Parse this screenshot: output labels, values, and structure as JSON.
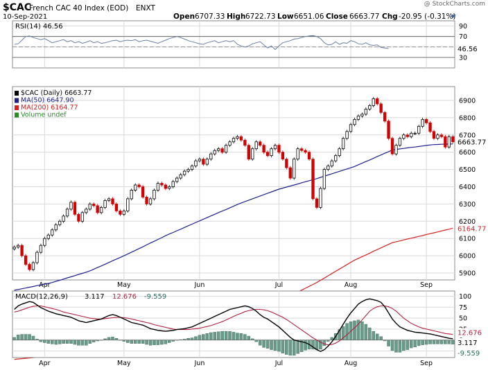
{
  "header": {
    "symbol": "$CAC",
    "name": "French CAC 40 Index (EOD)",
    "exchange": "ENXT",
    "date": "10-Sep-2021",
    "watermark": "@ StockCharts.com",
    "quote": {
      "open_label": "Open",
      "open": "6707.33",
      "high_label": "High",
      "high": "6722.73",
      "low_label": "Low",
      "low": "6651.06",
      "close_label": "Close",
      "close": "6663.77",
      "chg_label": "Chg",
      "chg": "-20.95 (-0.31%)"
    }
  },
  "colors": {
    "up": "#000000",
    "down": "#d40000",
    "ma50": "#1f1f8f",
    "ma200": "#d42020",
    "rsi": "#6b7ea4",
    "rsi_fill": "#7f96a6",
    "macd": "#000000",
    "signal": "#b02040",
    "hist": "#6a9a8a",
    "grid": "#d8d8d8",
    "chg": "#d40000"
  },
  "chart_data": [
    {
      "type": "line",
      "name": "rsi",
      "legend": "RSI(14) 46.56",
      "last_label": "46.56",
      "ylim": [
        10,
        100
      ],
      "yticks": [
        30,
        50,
        70,
        90
      ],
      "overbought": 70,
      "oversold": 30,
      "values": [
        55,
        56,
        63,
        70,
        71,
        68,
        66,
        64,
        66,
        62,
        58,
        60,
        62,
        64,
        60,
        62,
        58,
        60,
        57,
        59,
        62,
        58,
        60,
        57,
        58,
        60,
        62,
        63,
        60,
        62,
        63,
        62,
        64,
        60,
        62,
        63,
        61,
        59,
        57,
        60,
        63,
        66,
        68,
        70,
        68,
        65,
        62,
        60,
        58,
        56,
        55,
        58,
        60,
        62,
        58,
        60,
        62,
        60,
        62,
        55,
        52,
        50,
        52,
        56,
        58,
        60,
        54,
        48,
        52,
        45,
        52,
        58,
        60,
        62,
        65,
        66,
        68,
        70,
        71,
        72,
        70,
        66,
        58,
        54,
        55,
        60,
        55,
        58,
        57,
        62,
        60,
        56,
        55,
        58,
        54,
        53,
        54,
        49,
        48,
        47
      ]
    },
    {
      "type": "candlestick",
      "name": "price",
      "legend": [
        "$CAC (Daily) 6663.77",
        "MA(50) 6647.90",
        "MA(200) 6164.77",
        "Volume undef"
      ],
      "last_price_label": "6663.77",
      "ma200_label": "6164.77",
      "ylim": [
        5860,
        6980
      ],
      "yticks": [
        5900,
        6000,
        6100,
        6200,
        6300,
        6400,
        6500,
        6600,
        6700,
        6800,
        6900
      ],
      "x_labels": [
        {
          "label": "Apr",
          "index": 8
        },
        {
          "label": "May",
          "index": 29
        },
        {
          "label": "Jun",
          "index": 49
        },
        {
          "label": "Jul",
          "index": 70
        },
        {
          "label": "Aug",
          "index": 89
        },
        {
          "label": "Sep",
          "index": 109
        }
      ],
      "close": [
        6050,
        6060,
        6000,
        5950,
        5920,
        5960,
        6020,
        6060,
        6100,
        6120,
        6150,
        6180,
        6200,
        6230,
        6270,
        6310,
        6240,
        6200,
        6250,
        6270,
        6300,
        6290,
        6250,
        6280,
        6320,
        6330,
        6300,
        6260,
        6240,
        6260,
        6330,
        6380,
        6410,
        6400,
        6340,
        6300,
        6330,
        6380,
        6420,
        6410,
        6390,
        6400,
        6430,
        6450,
        6470,
        6490,
        6500,
        6520,
        6550,
        6560,
        6530,
        6560,
        6590,
        6610,
        6620,
        6600,
        6640,
        6660,
        6680,
        6690,
        6670,
        6640,
        6560,
        6620,
        6660,
        6640,
        6600,
        6580,
        6620,
        6640,
        6600,
        6560,
        6510,
        6450,
        6560,
        6620,
        6610,
        6600,
        6560,
        6330,
        6280,
        6390,
        6500,
        6520,
        6550,
        6580,
        6620,
        6680,
        6720,
        6760,
        6790,
        6810,
        6820,
        6850,
        6870,
        6910,
        6880,
        6830,
        6780,
        6680,
        6590,
        6640,
        6680,
        6700,
        6690,
        6710,
        6710,
        6750,
        6790,
        6770,
        6720,
        6680,
        6700,
        6690,
        6630,
        6690,
        6660
      ],
      "ma50": [
        5800,
        5804,
        5809,
        5813,
        5818,
        5822,
        5827,
        5831,
        5836,
        5840,
        5845,
        5852,
        5858,
        5865,
        5872,
        5878,
        5885,
        5892,
        5898,
        5905,
        5912,
        5922,
        5932,
        5941,
        5951,
        5961,
        5971,
        5981,
        5990,
        6000,
        6010,
        6021,
        6031,
        6042,
        6052,
        6063,
        6074,
        6084,
        6095,
        6105,
        6116,
        6126,
        6135,
        6145,
        6154,
        6164,
        6174,
        6183,
        6193,
        6202,
        6212,
        6221,
        6231,
        6240,
        6250,
        6259,
        6268,
        6278,
        6287,
        6297,
        6306,
        6314,
        6322,
        6330,
        6338,
        6346,
        6354,
        6362,
        6370,
        6378,
        6386,
        6392,
        6398,
        6404,
        6410,
        6416,
        6423,
        6429,
        6435,
        6441,
        6447,
        6454,
        6461,
        6468,
        6475,
        6482,
        6489,
        6496,
        6503,
        6510,
        6517,
        6527,
        6536,
        6546,
        6555,
        6565,
        6575,
        6584,
        6594,
        6603,
        6613,
        6616,
        6619,
        6622,
        6625,
        6628,
        6630,
        6633,
        6636,
        6639,
        6642,
        6644,
        6645,
        6646,
        6647,
        6647,
        6648
      ],
      "ma200": [
        5400,
        5402,
        5404,
        5406,
        5408,
        5410,
        5412,
        5414,
        5416,
        5418,
        5420,
        5421,
        5423,
        5424,
        5426,
        5427,
        5428,
        5430,
        5431,
        5433,
        5434,
        5436,
        5438,
        5440,
        5442,
        5444,
        5446,
        5448,
        5450,
        5452,
        5454,
        5457,
        5460,
        5463,
        5466,
        5469,
        5472,
        5475,
        5478,
        5481,
        5484,
        5488,
        5492,
        5496,
        5500,
        5504,
        5508,
        5512,
        5516,
        5520,
        5524,
        5533,
        5541,
        5550,
        5559,
        5568,
        5577,
        5585,
        5594,
        5603,
        5612,
        5624,
        5637,
        5649,
        5662,
        5674,
        5686,
        5699,
        5711,
        5724,
        5736,
        5747,
        5758,
        5769,
        5780,
        5790,
        5801,
        5812,
        5823,
        5834,
        5845,
        5858,
        5871,
        5884,
        5897,
        5910,
        5923,
        5936,
        5949,
        5962,
        5975,
        5985,
        5995,
        6005,
        6015,
        6026,
        6036,
        6046,
        6056,
        6066,
        6076,
        6081,
        6086,
        6092,
        6097,
        6102,
        6107,
        6112,
        6117,
        6123,
        6128,
        6133,
        6138,
        6144,
        6149,
        6154,
        6160
      ]
    },
    {
      "type": "line",
      "name": "macd",
      "legend": [
        "MACD(12,26,9)",
        "3.117",
        "12.676",
        "-9.559"
      ],
      "last_labels": [
        "12.676",
        "3.117",
        "-9.559"
      ],
      "ylim": [
        -40,
        112
      ],
      "yticks": [
        -25,
        0,
        25,
        50,
        75,
        100
      ],
      "macd": [
        70,
        78,
        82,
        85,
        88,
        86,
        80,
        74,
        70,
        66,
        63,
        60,
        58,
        56,
        54,
        52,
        48,
        44,
        42,
        40,
        42,
        44,
        46,
        48,
        52,
        56,
        58,
        56,
        52,
        48,
        44,
        40,
        38,
        36,
        34,
        30,
        26,
        24,
        22,
        21,
        20,
        21,
        22,
        24,
        25,
        26,
        28,
        30,
        34,
        38,
        42,
        46,
        50,
        54,
        58,
        62,
        66,
        70,
        72,
        74,
        76,
        78,
        76,
        72,
        66,
        58,
        52,
        48,
        42,
        36,
        30,
        22,
        14,
        6,
        0,
        -2,
        -4,
        -6,
        -10,
        -16,
        -22,
        -26,
        -22,
        -14,
        -4,
        8,
        22,
        36,
        50,
        62,
        72,
        82,
        88,
        92,
        94,
        92,
        90,
        86,
        76,
        62,
        48,
        38,
        30,
        26,
        22,
        20,
        18,
        17,
        16,
        15,
        14,
        12,
        10,
        8,
        6,
        4,
        3
      ],
      "signal": [
        64,
        66,
        69,
        72,
        75,
        77,
        78,
        78,
        76,
        74,
        72,
        70,
        67,
        64,
        62,
        60,
        58,
        56,
        54,
        52,
        50,
        49,
        48,
        48,
        49,
        50,
        51,
        52,
        52,
        51,
        50,
        48,
        46,
        44,
        42,
        40,
        38,
        35,
        33,
        31,
        29,
        27,
        25,
        24,
        24,
        24,
        24,
        25,
        26,
        27,
        29,
        31,
        33,
        36,
        39,
        42,
        46,
        50,
        54,
        58,
        61,
        65,
        67,
        69,
        70,
        70,
        69,
        67,
        64,
        60,
        56,
        52,
        47,
        41,
        35,
        29,
        23,
        17,
        11,
        5,
        0,
        -5,
        -9,
        -11,
        -10,
        -7,
        -2,
        5,
        12,
        20,
        28,
        36,
        46,
        56,
        66,
        72,
        76,
        78,
        78,
        76,
        72,
        66,
        58,
        50,
        44,
        38,
        34,
        30,
        27,
        25,
        23,
        21,
        19,
        17,
        15,
        14,
        12.7
      ],
      "hist": [
        6,
        12,
        13,
        13,
        13,
        9,
        2,
        -4,
        -6,
        -8,
        -9,
        -10,
        -9,
        -8,
        -8,
        -8,
        -10,
        -12,
        -12,
        -12,
        -8,
        -5,
        -2,
        0,
        3,
        6,
        7,
        4,
        0,
        -3,
        -6,
        -8,
        -8,
        -8,
        -8,
        -10,
        -12,
        -11,
        -11,
        -10,
        -9,
        -6,
        -3,
        0,
        1,
        2,
        4,
        5,
        8,
        11,
        13,
        15,
        17,
        18,
        19,
        20,
        20,
        20,
        18,
        16,
        15,
        13,
        9,
        3,
        -4,
        -12,
        -17,
        -19,
        -22,
        -24,
        -26,
        -30,
        -33,
        -35,
        -35,
        -31,
        -27,
        -23,
        -21,
        -21,
        -22,
        -21,
        -13,
        -3,
        6,
        15,
        24,
        31,
        38,
        42,
        44,
        46,
        42,
        36,
        28,
        20,
        14,
        8,
        -2,
        -14,
        -24,
        -28,
        -28,
        -24,
        -22,
        -18,
        -16,
        -13,
        -11,
        -10,
        -9,
        -9,
        -9,
        -9,
        -9,
        -9,
        -9.6
      ]
    }
  ]
}
